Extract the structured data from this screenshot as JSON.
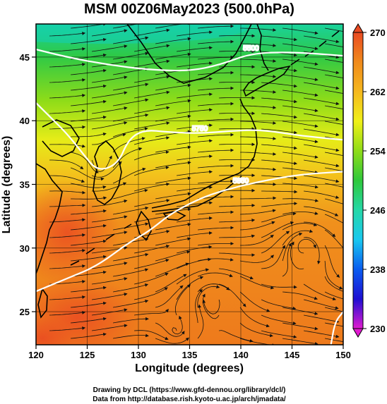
{
  "title": "MSM 00Z06May2023 (500.0hPa)",
  "xlabel": "Longitude (degrees)",
  "ylabel": "Latitude  (degrees)",
  "xticks": [
    "120",
    "125",
    "130",
    "135",
    "140",
    "145",
    "150"
  ],
  "yticks": [
    "25",
    "30",
    "35",
    "40",
    "45"
  ],
  "xlim": [
    120,
    150
  ],
  "ylim": [
    22.4,
    47.6
  ],
  "colorbar": {
    "range": [
      230,
      270
    ],
    "labels": [
      "270",
      "262",
      "254",
      "246",
      "238",
      "230"
    ],
    "colors": [
      "#e01ad0",
      "#1e0fd2",
      "#0a5cf0",
      "#19c8f0",
      "#25d8a8",
      "#2fc83c",
      "#8fdc18",
      "#f0f018",
      "#f5b81e",
      "#f08a1c",
      "#ea4a22"
    ]
  },
  "contours": [
    {
      "label": "5500",
      "lonlat": [
        [
          120,
          45.6
        ],
        [
          123,
          45.0
        ],
        [
          127,
          44.4
        ],
        [
          131,
          44.0
        ],
        [
          135,
          43.9
        ],
        [
          138,
          44.4
        ],
        [
          141,
          45.3
        ],
        [
          145,
          45.4
        ],
        [
          150,
          45.1
        ]
      ]
    },
    {
      "label": "5750",
      "lonlat": [
        [
          120,
          41.4
        ],
        [
          121.5,
          40.2
        ],
        [
          123,
          39.0
        ],
        [
          124.5,
          37.5
        ],
        [
          126,
          36.0
        ],
        [
          128,
          36.6
        ],
        [
          129,
          38.5
        ],
        [
          130.5,
          39.3
        ],
        [
          133,
          39.1
        ],
        [
          136,
          39.0
        ],
        [
          139,
          39.2
        ],
        [
          142,
          39.3
        ],
        [
          146,
          38.8
        ],
        [
          150,
          38.5
        ]
      ]
    },
    {
      "label": "5850",
      "lonlat": [
        [
          120,
          26.6
        ],
        [
          123,
          27.6
        ],
        [
          126,
          28.6
        ],
        [
          129,
          30.4
        ],
        [
          131,
          31.3
        ],
        [
          133,
          32.6
        ],
        [
          135,
          33.5
        ],
        [
          137,
          34.2
        ],
        [
          140,
          34.9
        ],
        [
          143,
          35.4
        ],
        [
          146,
          35.8
        ],
        [
          150,
          36.0
        ]
      ]
    },
    {
      "label": "",
      "lonlat": [
        [
          148.8,
          22.4
        ],
        [
          149.2,
          24.2
        ],
        [
          150,
          25.0
        ]
      ]
    }
  ],
  "credits": [
    "Drawing by DCL (https://www.gfd-dennou.org/library/dcl/)",
    "Data from http://database.rish.kyoto-u.ac.jp/arch/jmadata/"
  ]
}
